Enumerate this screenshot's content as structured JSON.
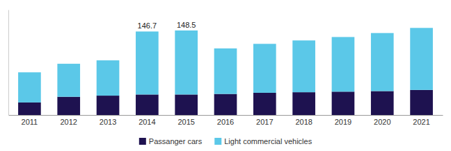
{
  "chart_data": {
    "type": "bar",
    "stacked": true,
    "categories": [
      "2011",
      "2012",
      "2013",
      "2014",
      "2015",
      "2016",
      "2017",
      "2018",
      "2019",
      "2020",
      "2021"
    ],
    "series": [
      {
        "name": "Passanger cars",
        "color": "#1e1250",
        "values": [
          22,
          32,
          34,
          36,
          36,
          37,
          39,
          40,
          41,
          42,
          44
        ]
      },
      {
        "name": "Light commercial vehicles",
        "color": "#5bc8e8",
        "values": [
          53,
          58,
          62,
          110.7,
          112.5,
          80,
          86,
          91,
          96,
          102,
          109
        ]
      }
    ],
    "annotations": [
      {
        "text": "146.7",
        "category": "2014",
        "value": 146.7
      },
      {
        "text": "148.5",
        "category": "2015",
        "value": 148.5
      }
    ],
    "ylim": [
      0,
      185
    ],
    "yticks": [],
    "tick_labels": "x",
    "grid": false,
    "legend": "bottom"
  }
}
